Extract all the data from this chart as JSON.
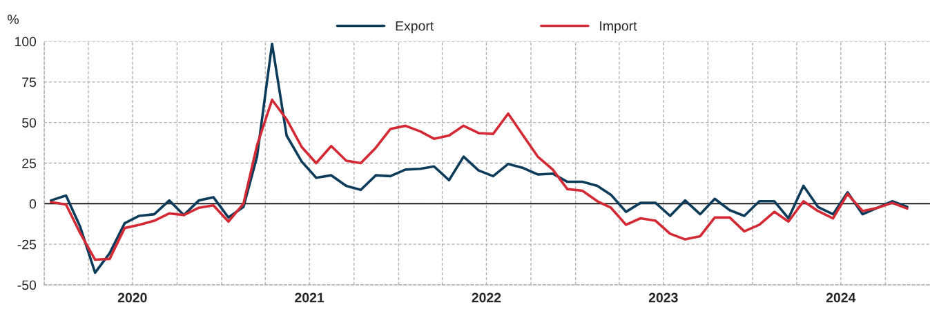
{
  "chart_data": {
    "type": "line",
    "ylabel": "%",
    "x": [
      "2020-01-15",
      "2020-02-15",
      "2020-03-15",
      "2020-04-15",
      "2020-05-15",
      "2020-06-15",
      "2020-07-15",
      "2020-08-15",
      "2020-09-15",
      "2020-10-15",
      "2020-11-15",
      "2020-12-15",
      "2021-01-15",
      "2021-02-15",
      "2021-03-15",
      "2021-04-15",
      "2021-05-15",
      "2021-06-15",
      "2021-07-15",
      "2021-08-15",
      "2021-09-15",
      "2021-10-15",
      "2021-11-15",
      "2021-12-15",
      "2022-01-15",
      "2022-02-15",
      "2022-03-15",
      "2022-04-15",
      "2022-05-15",
      "2022-06-15",
      "2022-07-15",
      "2022-08-15",
      "2022-09-15",
      "2022-10-15",
      "2022-11-15",
      "2022-12-15",
      "2023-01-15",
      "2023-02-15",
      "2023-03-15",
      "2023-04-15",
      "2023-05-15",
      "2023-06-15",
      "2023-07-15",
      "2023-08-15",
      "2023-09-15",
      "2023-10-15",
      "2023-11-15",
      "2023-12-15",
      "2024-01-15",
      "2024-02-15",
      "2024-03-15",
      "2024-04-15",
      "2024-05-15",
      "2024-06-15",
      "2024-07-15",
      "2024-08-15",
      "2024-09-15",
      "2024-10-15",
      "2024-11-15"
    ],
    "series": [
      {
        "name": "Export",
        "color": "#0d3b5a",
        "values": [
          2,
          5,
          -14,
          -42.5,
          -30.5,
          -12,
          -7.5,
          -6.5,
          2,
          -7,
          2,
          4,
          -8.5,
          -2,
          29,
          98.5,
          42,
          26,
          16,
          17.5,
          11,
          8.5,
          17.5,
          17,
          21,
          21.5,
          23,
          14.5,
          29,
          20.5,
          17,
          24.5,
          22,
          18,
          18.5,
          13.5,
          13.5,
          11,
          5.5,
          -5,
          0.5,
          0.5,
          -7.5,
          2,
          -6.5,
          3,
          -4,
          -7.5,
          1.5,
          1.5,
          -9,
          11,
          -2,
          -6.5,
          7,
          -6.5,
          -2.5,
          1.5,
          -2
        ]
      },
      {
        "name": "Import",
        "color": "#d32935",
        "values": [
          1,
          -0.5,
          -18,
          -34.5,
          -34,
          -15,
          -13,
          -10.5,
          -6,
          -7,
          -2.5,
          -1,
          -11,
          0,
          36,
          64,
          52,
          35,
          25,
          35.5,
          26.5,
          25,
          34.5,
          46,
          48,
          44.5,
          40,
          42,
          48,
          43.5,
          43,
          55.5,
          42,
          29,
          21,
          9,
          8,
          1.5,
          -2.5,
          -13,
          -9,
          -10.5,
          -18.5,
          -22,
          -20,
          -8.5,
          -8.5,
          -17,
          -13,
          -5,
          -11,
          1.5,
          -4.5,
          -9,
          6,
          -4.5,
          -2.5,
          0.5,
          -3
        ]
      }
    ],
    "xlim": [
      "2020-01-01",
      "2025-01-01"
    ],
    "xticks": [
      {
        "value": "2020-01-01",
        "label": null
      },
      {
        "value": "2020-04-01",
        "label": null
      },
      {
        "value": "2020-07-01",
        "label": "2020"
      },
      {
        "value": "2020-10-01",
        "label": null
      },
      {
        "value": "2021-01-01",
        "label": null
      },
      {
        "value": "2021-04-01",
        "label": null
      },
      {
        "value": "2021-07-01",
        "label": "2021"
      },
      {
        "value": "2021-10-01",
        "label": null
      },
      {
        "value": "2022-01-01",
        "label": null
      },
      {
        "value": "2022-04-01",
        "label": null
      },
      {
        "value": "2022-07-01",
        "label": "2022"
      },
      {
        "value": "2022-10-01",
        "label": null
      },
      {
        "value": "2023-01-01",
        "label": null
      },
      {
        "value": "2023-04-01",
        "label": null
      },
      {
        "value": "2023-07-01",
        "label": "2023"
      },
      {
        "value": "2023-10-01",
        "label": null
      },
      {
        "value": "2024-01-01",
        "label": null
      },
      {
        "value": "2024-04-01",
        "label": null
      },
      {
        "value": "2024-07-01",
        "label": "2024"
      },
      {
        "value": "2024-10-01",
        "label": null
      }
    ],
    "ylim": [
      -50,
      100
    ],
    "yticks": [
      -50,
      -25,
      0,
      25,
      50,
      75,
      100
    ],
    "ref_lines": [
      {
        "axis": "y",
        "value": 0,
        "label": null,
        "color": "#000000",
        "line_style": "solid"
      }
    ],
    "grid": true,
    "legend": "top",
    "marker": "none",
    "line_style": "solid"
  }
}
